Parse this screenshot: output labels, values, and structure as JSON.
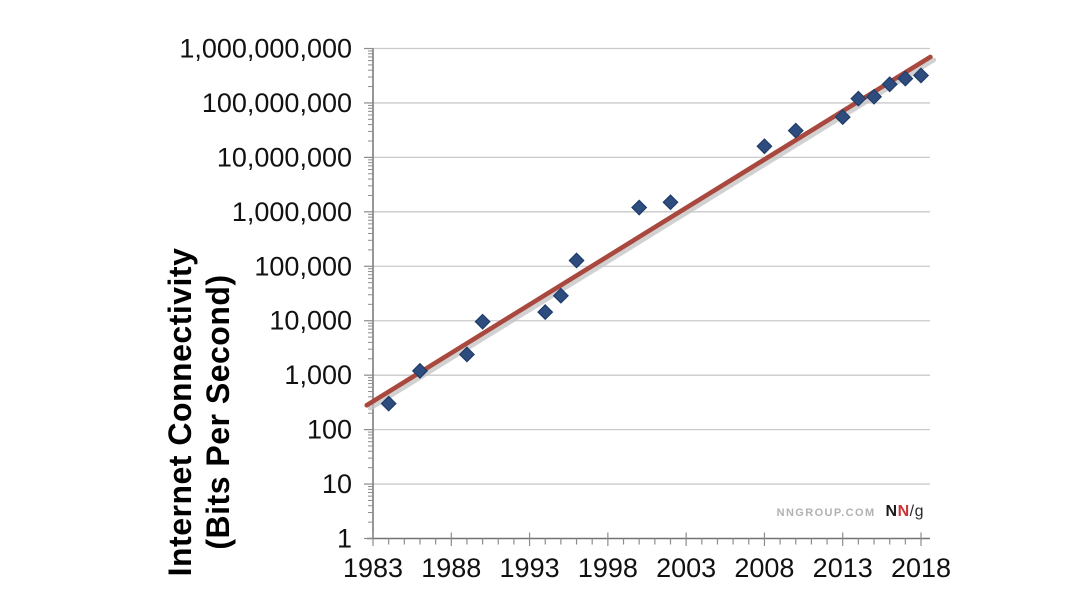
{
  "chart_data": {
    "type": "scatter",
    "title": "",
    "ylabel_line1": "Internet Connectivity",
    "ylabel_line2": "(Bits Per Second)",
    "xlabel": "",
    "y_scale": "log10",
    "y_min": 1,
    "y_max": 1000000000,
    "x_min": 1983,
    "x_max": 2018,
    "x_tick_step_years": 5,
    "grid": true,
    "legend": "none",
    "x_tick_labels": [
      "1983",
      "1988",
      "1993",
      "1998",
      "2003",
      "2008",
      "2013",
      "2018"
    ],
    "y_tick_labels": [
      "1",
      "10",
      "100",
      "1,000",
      "10,000",
      "100,000",
      "1,000,000",
      "10,000,000",
      "100,000,000",
      "1,000,000,000"
    ],
    "points": [
      {
        "year": 1984,
        "bps": 300
      },
      {
        "year": 1986,
        "bps": 1200
      },
      {
        "year": 1989,
        "bps": 2400
      },
      {
        "year": 1990,
        "bps": 9600
      },
      {
        "year": 1994,
        "bps": 14400
      },
      {
        "year": 1995,
        "bps": 28800
      },
      {
        "year": 1996,
        "bps": 128000
      },
      {
        "year": 2000,
        "bps": 1200000
      },
      {
        "year": 2002,
        "bps": 1500000
      },
      {
        "year": 2008,
        "bps": 16000000
      },
      {
        "year": 2010,
        "bps": 31000000
      },
      {
        "year": 2013,
        "bps": 55000000
      },
      {
        "year": 2014,
        "bps": 120000000
      },
      {
        "year": 2015,
        "bps": 130000000
      },
      {
        "year": 2016,
        "bps": 220000000
      },
      {
        "year": 2017,
        "bps": 280000000
      },
      {
        "year": 2018,
        "bps": 320000000
      }
    ],
    "trend_line": {
      "start": {
        "year": 1982.6,
        "bps": 280
      },
      "end": {
        "year": 2018.6,
        "bps": 700000000
      }
    }
  },
  "branding": {
    "site": "NNGROUP.COM",
    "logo_n1": "N",
    "logo_n2": "N",
    "logo_suffix": "/g"
  },
  "colors": {
    "point_fill": "#2e4d7e",
    "point_stroke": "#1f3c6a",
    "trend": "#a9483e",
    "trend_shadow": "#c2c2c2",
    "gridline": "#cacaca",
    "axis": "#737373",
    "tick": "#8c8c8c",
    "label": "#111111"
  }
}
